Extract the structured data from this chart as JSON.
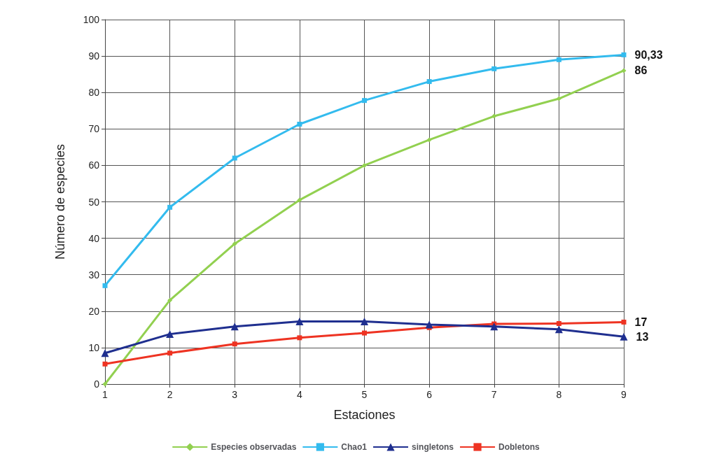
{
  "chart_data": {
    "type": "line",
    "xlabel": "Estaciones",
    "ylabel": "Número de especies",
    "x": [
      1,
      2,
      3,
      4,
      5,
      6,
      7,
      8,
      9
    ],
    "xlim": [
      1,
      9
    ],
    "xticks": [
      1,
      2,
      3,
      4,
      5,
      6,
      7,
      8,
      9
    ],
    "ylim": [
      0,
      100
    ],
    "yticks": [
      0,
      10,
      20,
      30,
      40,
      50,
      60,
      70,
      80,
      90,
      100
    ],
    "grid": true,
    "legend": "bottom",
    "series": [
      {
        "name": "Especies observadas",
        "color": "#92d050",
        "marker": "diamond",
        "values": [
          0,
          23,
          38.5,
          50.5,
          60,
          67,
          73.5,
          78.3,
          86
        ],
        "value_labels": [
          null,
          null,
          null,
          null,
          null,
          null,
          null,
          null,
          "86"
        ]
      },
      {
        "name": "Chao1",
        "color": "#33bbee",
        "marker": "square",
        "values": [
          27,
          48.5,
          62,
          71.3,
          77.8,
          83,
          86.5,
          89,
          90.33
        ],
        "value_labels": [
          null,
          null,
          null,
          null,
          null,
          null,
          null,
          null,
          "90,33"
        ]
      },
      {
        "name": "singletons",
        "color": "#1f2f8f",
        "marker": "triangle",
        "values": [
          8.5,
          13.7,
          15.8,
          17.2,
          17.2,
          16.3,
          15.8,
          15,
          13
        ],
        "value_labels": [
          null,
          null,
          null,
          null,
          null,
          null,
          null,
          null,
          "13"
        ]
      },
      {
        "name": "Dobletons",
        "color": "#ee3322",
        "marker": "square",
        "values": [
          5.5,
          8.5,
          11,
          12.7,
          14,
          15.5,
          16.5,
          16.6,
          17
        ],
        "value_labels": [
          null,
          null,
          null,
          null,
          null,
          null,
          null,
          null,
          "17"
        ]
      }
    ]
  }
}
